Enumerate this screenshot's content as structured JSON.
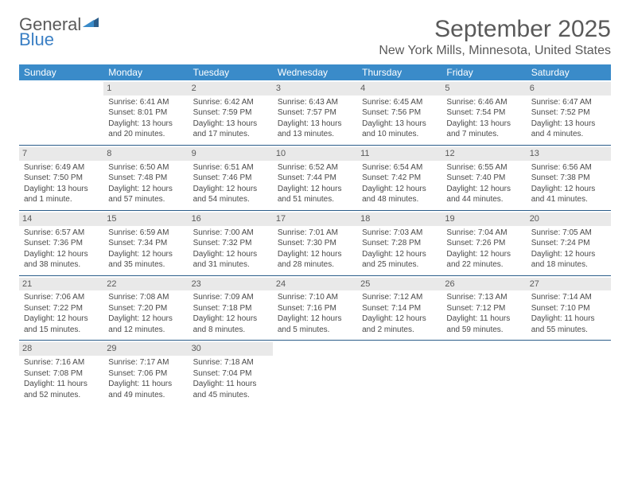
{
  "logo": {
    "text1": "General",
    "text2": "Blue"
  },
  "header": {
    "title": "September 2025",
    "location": "New York Mills, Minnesota, United States"
  },
  "colors": {
    "header_bg": "#3a8bc9",
    "header_text": "#ffffff",
    "daynum_bg": "#e9e9e9",
    "border": "#2b5d8a",
    "text": "#4a4a4a",
    "logo_gray": "#5a5a5a",
    "logo_blue": "#3a7fc4"
  },
  "weekdays": [
    "Sunday",
    "Monday",
    "Tuesday",
    "Wednesday",
    "Thursday",
    "Friday",
    "Saturday"
  ],
  "weeks": [
    [
      null,
      {
        "n": "1",
        "sr": "Sunrise: 6:41 AM",
        "ss": "Sunset: 8:01 PM",
        "d1": "Daylight: 13 hours",
        "d2": "and 20 minutes."
      },
      {
        "n": "2",
        "sr": "Sunrise: 6:42 AM",
        "ss": "Sunset: 7:59 PM",
        "d1": "Daylight: 13 hours",
        "d2": "and 17 minutes."
      },
      {
        "n": "3",
        "sr": "Sunrise: 6:43 AM",
        "ss": "Sunset: 7:57 PM",
        "d1": "Daylight: 13 hours",
        "d2": "and 13 minutes."
      },
      {
        "n": "4",
        "sr": "Sunrise: 6:45 AM",
        "ss": "Sunset: 7:56 PM",
        "d1": "Daylight: 13 hours",
        "d2": "and 10 minutes."
      },
      {
        "n": "5",
        "sr": "Sunrise: 6:46 AM",
        "ss": "Sunset: 7:54 PM",
        "d1": "Daylight: 13 hours",
        "d2": "and 7 minutes."
      },
      {
        "n": "6",
        "sr": "Sunrise: 6:47 AM",
        "ss": "Sunset: 7:52 PM",
        "d1": "Daylight: 13 hours",
        "d2": "and 4 minutes."
      }
    ],
    [
      {
        "n": "7",
        "sr": "Sunrise: 6:49 AM",
        "ss": "Sunset: 7:50 PM",
        "d1": "Daylight: 13 hours",
        "d2": "and 1 minute."
      },
      {
        "n": "8",
        "sr": "Sunrise: 6:50 AM",
        "ss": "Sunset: 7:48 PM",
        "d1": "Daylight: 12 hours",
        "d2": "and 57 minutes."
      },
      {
        "n": "9",
        "sr": "Sunrise: 6:51 AM",
        "ss": "Sunset: 7:46 PM",
        "d1": "Daylight: 12 hours",
        "d2": "and 54 minutes."
      },
      {
        "n": "10",
        "sr": "Sunrise: 6:52 AM",
        "ss": "Sunset: 7:44 PM",
        "d1": "Daylight: 12 hours",
        "d2": "and 51 minutes."
      },
      {
        "n": "11",
        "sr": "Sunrise: 6:54 AM",
        "ss": "Sunset: 7:42 PM",
        "d1": "Daylight: 12 hours",
        "d2": "and 48 minutes."
      },
      {
        "n": "12",
        "sr": "Sunrise: 6:55 AM",
        "ss": "Sunset: 7:40 PM",
        "d1": "Daylight: 12 hours",
        "d2": "and 44 minutes."
      },
      {
        "n": "13",
        "sr": "Sunrise: 6:56 AM",
        "ss": "Sunset: 7:38 PM",
        "d1": "Daylight: 12 hours",
        "d2": "and 41 minutes."
      }
    ],
    [
      {
        "n": "14",
        "sr": "Sunrise: 6:57 AM",
        "ss": "Sunset: 7:36 PM",
        "d1": "Daylight: 12 hours",
        "d2": "and 38 minutes."
      },
      {
        "n": "15",
        "sr": "Sunrise: 6:59 AM",
        "ss": "Sunset: 7:34 PM",
        "d1": "Daylight: 12 hours",
        "d2": "and 35 minutes."
      },
      {
        "n": "16",
        "sr": "Sunrise: 7:00 AM",
        "ss": "Sunset: 7:32 PM",
        "d1": "Daylight: 12 hours",
        "d2": "and 31 minutes."
      },
      {
        "n": "17",
        "sr": "Sunrise: 7:01 AM",
        "ss": "Sunset: 7:30 PM",
        "d1": "Daylight: 12 hours",
        "d2": "and 28 minutes."
      },
      {
        "n": "18",
        "sr": "Sunrise: 7:03 AM",
        "ss": "Sunset: 7:28 PM",
        "d1": "Daylight: 12 hours",
        "d2": "and 25 minutes."
      },
      {
        "n": "19",
        "sr": "Sunrise: 7:04 AM",
        "ss": "Sunset: 7:26 PM",
        "d1": "Daylight: 12 hours",
        "d2": "and 22 minutes."
      },
      {
        "n": "20",
        "sr": "Sunrise: 7:05 AM",
        "ss": "Sunset: 7:24 PM",
        "d1": "Daylight: 12 hours",
        "d2": "and 18 minutes."
      }
    ],
    [
      {
        "n": "21",
        "sr": "Sunrise: 7:06 AM",
        "ss": "Sunset: 7:22 PM",
        "d1": "Daylight: 12 hours",
        "d2": "and 15 minutes."
      },
      {
        "n": "22",
        "sr": "Sunrise: 7:08 AM",
        "ss": "Sunset: 7:20 PM",
        "d1": "Daylight: 12 hours",
        "d2": "and 12 minutes."
      },
      {
        "n": "23",
        "sr": "Sunrise: 7:09 AM",
        "ss": "Sunset: 7:18 PM",
        "d1": "Daylight: 12 hours",
        "d2": "and 8 minutes."
      },
      {
        "n": "24",
        "sr": "Sunrise: 7:10 AM",
        "ss": "Sunset: 7:16 PM",
        "d1": "Daylight: 12 hours",
        "d2": "and 5 minutes."
      },
      {
        "n": "25",
        "sr": "Sunrise: 7:12 AM",
        "ss": "Sunset: 7:14 PM",
        "d1": "Daylight: 12 hours",
        "d2": "and 2 minutes."
      },
      {
        "n": "26",
        "sr": "Sunrise: 7:13 AM",
        "ss": "Sunset: 7:12 PM",
        "d1": "Daylight: 11 hours",
        "d2": "and 59 minutes."
      },
      {
        "n": "27",
        "sr": "Sunrise: 7:14 AM",
        "ss": "Sunset: 7:10 PM",
        "d1": "Daylight: 11 hours",
        "d2": "and 55 minutes."
      }
    ],
    [
      {
        "n": "28",
        "sr": "Sunrise: 7:16 AM",
        "ss": "Sunset: 7:08 PM",
        "d1": "Daylight: 11 hours",
        "d2": "and 52 minutes."
      },
      {
        "n": "29",
        "sr": "Sunrise: 7:17 AM",
        "ss": "Sunset: 7:06 PM",
        "d1": "Daylight: 11 hours",
        "d2": "and 49 minutes."
      },
      {
        "n": "30",
        "sr": "Sunrise: 7:18 AM",
        "ss": "Sunset: 7:04 PM",
        "d1": "Daylight: 11 hours",
        "d2": "and 45 minutes."
      },
      null,
      null,
      null,
      null
    ]
  ]
}
